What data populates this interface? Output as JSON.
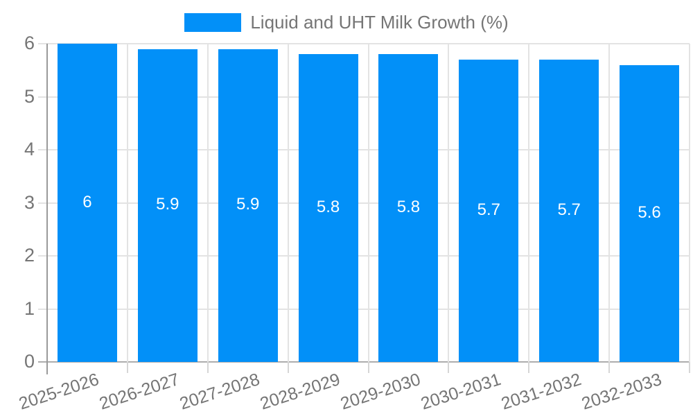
{
  "legend": {
    "label": "Liquid and UHT Milk Growth (%)"
  },
  "chart_data": {
    "type": "bar",
    "title": "Liquid and UHT Milk Growth (%)",
    "categories": [
      "2025-2026",
      "2026-2027",
      "2027-2028",
      "2028-2029",
      "2029-2030",
      "2030-2031",
      "2031-2032",
      "2032-2033"
    ],
    "values": [
      6,
      5.9,
      5.9,
      5.8,
      5.8,
      5.7,
      5.7,
      5.6
    ],
    "value_labels": [
      "6",
      "5.9",
      "5.9",
      "5.8",
      "5.8",
      "5.7",
      "5.7",
      "5.6"
    ],
    "xlabel": "",
    "ylabel": "",
    "ylim": [
      0,
      6
    ],
    "yticks": [
      0,
      1,
      2,
      3,
      4,
      5,
      6
    ],
    "grid": true,
    "legend_position": "top-center",
    "colors": {
      "bar": "#0290F8",
      "value_label_text": "#FFFFFF",
      "axis_text": "#757575",
      "gridline": "#E3E3E3",
      "baseline": "#ADADAD",
      "axis_line": "#9A9A9A",
      "minor_tick": "#D6D6D6"
    }
  }
}
